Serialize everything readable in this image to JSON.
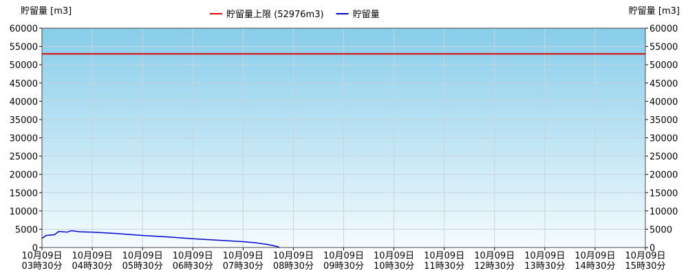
{
  "chart_data": {
    "type": "line",
    "y_label": "貯留量 [m3]",
    "y2_label": "貯留量 [m3]",
    "limit": {
      "name": "貯留量上限 (52976m3)",
      "value": 52976,
      "color": "#e00000"
    },
    "x": [
      3.5,
      3.583,
      3.75,
      3.833,
      4.0,
      4.083,
      4.25,
      4.5,
      5.0,
      5.5,
      6.0,
      6.5,
      7.0,
      7.5,
      7.75,
      8.0,
      8.167,
      8.22
    ],
    "series": [
      {
        "name": "貯留量",
        "color": "#0000cc",
        "values": [
          2500,
          3300,
          3500,
          4400,
          4200,
          4600,
          4300,
          4200,
          3800,
          3300,
          2900,
          2400,
          2000,
          1600,
          1300,
          800,
          300,
          0
        ]
      }
    ],
    "xlim": [
      3.5,
      15.5
    ],
    "xticks": [
      {
        "value": 3.5,
        "label": "10月09日03時30分"
      },
      {
        "value": 4.5,
        "label": "10月09日04時30分"
      },
      {
        "value": 5.5,
        "label": "10月09日05時30分"
      },
      {
        "value": 6.5,
        "label": "10月09日06時30分"
      },
      {
        "value": 7.5,
        "label": "10月09日07時30分"
      },
      {
        "value": 8.5,
        "label": "10月09日08時30分"
      },
      {
        "value": 9.5,
        "label": "10月09日09時30分"
      },
      {
        "value": 10.5,
        "label": "10月09日10時30分"
      },
      {
        "value": 11.5,
        "label": "10月09日11時30分"
      },
      {
        "value": 12.5,
        "label": "10月09日12時30分"
      },
      {
        "value": 13.5,
        "label": "10月09日13時30分"
      },
      {
        "value": 14.5,
        "label": "10月09日14時30分"
      },
      {
        "value": 15.5,
        "label": "10月09日15時30分"
      }
    ],
    "ylim": [
      0,
      60000
    ],
    "yticks": [
      0,
      5000,
      10000,
      15000,
      20000,
      25000,
      30000,
      35000,
      40000,
      45000,
      50000,
      55000,
      60000
    ],
    "grid": true
  }
}
